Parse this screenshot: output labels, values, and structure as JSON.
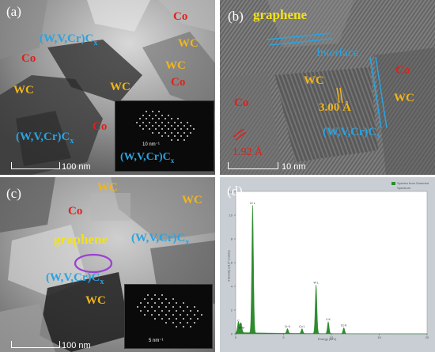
{
  "panel_a": {
    "label": "(a)",
    "phases": {
      "co_1": "Co",
      "co_2": "Co",
      "co_3": "Co",
      "co_4": "Co",
      "wc_1": "WC",
      "wc_2": "WC",
      "wc_3": "WC",
      "cx_1": "(W,V,Cr)C",
      "cx_2": "(W,V,Cr)C"
    },
    "subscript": "x",
    "scale_bar": "100 nm",
    "inset": {
      "label": "(W,V,Cr)C",
      "subscript": "x",
      "scale": "10 nm⁻¹"
    }
  },
  "panel_b": {
    "label": "(b)",
    "graphene": "graphene",
    "interface": "Interface",
    "co_1": "Co",
    "co_2": "Co",
    "wc_1": "WC",
    "wc_2": "WC",
    "d_spacing_1": "3.00 Å",
    "d_spacing_2": "1.92 Å",
    "cx": "(W,V,Cr)C",
    "subscript": "x",
    "scale_bar": "10 nm"
  },
  "panel_c": {
    "label": "(c)",
    "wc_1": "WC",
    "wc_2": "WC",
    "wc_3": "WC",
    "co": "Co",
    "graphene": "graphene",
    "cx_1": "(W,V,Cr)C",
    "cx_2": "(W,V,Cr)C",
    "subscript": "x",
    "scale_bar": "100 nm",
    "inset_scale": "5 nm⁻¹"
  },
  "panel_d": {
    "label": "(d)",
    "legend": [
      "Spectra from Summed",
      "Spectrum"
    ],
    "xlabel": "Energy (keV)",
    "ylabel": "Intensity (x10³ counts)",
    "peaks": [
      "C",
      "O",
      "W M",
      "Cr L",
      "Cr K",
      "Co L",
      "W L",
      "V K",
      "Co K"
    ],
    "colors": {
      "spectrum": "#2e8b2e",
      "background": "#c8ced4"
    }
  },
  "colors": {
    "co": "#e0201a",
    "wc": "#f1b51c",
    "carbide": "#2aa3e0",
    "graphene": "#f3e21a",
    "ellipse": "#9b3fd1"
  },
  "chart_data": {
    "type": "line",
    "title": "",
    "xlabel": "Energy (keV)",
    "ylabel": "Intensity (x10³ counts)",
    "xlim": [
      0,
      20
    ],
    "ylim": [
      0,
      12
    ],
    "series": [
      {
        "name": "Spectrum",
        "x": [
          0.28,
          0.52,
          0.6,
          1.77,
          5.41,
          6.93,
          8.4,
          9.67,
          11.3
        ],
        "y": [
          0.9,
          0.6,
          0.3,
          10.8,
          0.4,
          0.4,
          4.1,
          1.0,
          0.5
        ]
      }
    ]
  }
}
